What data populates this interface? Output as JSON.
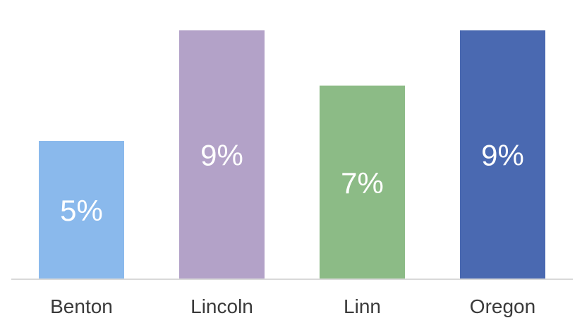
{
  "chart_data": {
    "type": "bar",
    "categories": [
      "Benton",
      "Lincoln",
      "Linn",
      "Oregon"
    ],
    "values": [
      5,
      9,
      7,
      9
    ],
    "data_labels": [
      "5%",
      "9%",
      "7%",
      "9%"
    ],
    "colors": [
      "#8ab9ec",
      "#b3a2c8",
      "#8cbb86",
      "#4a69b1"
    ],
    "title": "",
    "xlabel": "",
    "ylabel": "",
    "ylim": [
      0,
      10.1
    ],
    "grid": false,
    "legend": "none",
    "baseline_color": "#d9d9d9"
  }
}
